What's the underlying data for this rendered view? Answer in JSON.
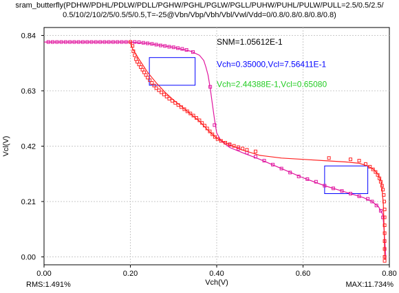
{
  "header": {
    "line1": "sram_butterfly(PDHW/PDHL/PDLW/PDLL/PGHW/PGHL/PGLW/PGLL/PUHW/PUHL/PULW/PULL=2.5/0.5/2.5/",
    "line2": "0.5/10/2/10/2/5/0.5/5/0.5,T=-25@Vbn/Vbp/Vbh/Vbl/Vwl/Vdd=0/0.8/0.8/0.8/0.8/0.8)"
  },
  "chart_data": {
    "type": "scatter",
    "xlabel": "Vch(V)",
    "ylabel": "Vcl(V)",
    "xlim": [
      0,
      0.8
    ],
    "ylim": [
      -0.03,
      0.87
    ],
    "xticks": [
      0.0,
      0.2,
      0.4,
      0.6,
      0.8
    ],
    "xtick_labels": [
      "0.00",
      "0.20",
      "0.40",
      "0.60",
      "0.80"
    ],
    "yticks": [
      0.0,
      0.21,
      0.42,
      0.63,
      0.84
    ],
    "ytick_labels": [
      "0.00",
      "0.21",
      "0.42",
      "0.63",
      "0.84"
    ],
    "grid": true,
    "colors": {
      "red": "#ff2020",
      "magenta": "#e0149e",
      "blue": "#0000ff",
      "green": "#22cc22",
      "grid": "#c8c8c8"
    },
    "annotations": [
      {
        "text": "SNM=1.05612E-1",
        "color": "#000000",
        "x": 0.4,
        "y": 0.805
      },
      {
        "text": "Vch=0.35000,Vcl=7.56411E-1",
        "color": "#0000ff",
        "x": 0.4,
        "y": 0.72
      },
      {
        "text": "Vch=2.44388E-1,Vcl=0.65080",
        "color": "#22cc22",
        "x": 0.4,
        "y": 0.645
      }
    ],
    "boxes": [
      {
        "x0": 0.244,
        "y0": 0.651,
        "x1": 0.35,
        "y1": 0.756,
        "color": "#0000ff"
      },
      {
        "x0": 0.65,
        "y0": 0.24,
        "x1": 0.75,
        "y1": 0.345,
        "color": "#0000ff"
      }
    ],
    "series": [
      {
        "color": "#e0149e",
        "curve": [
          [
            0.0,
            0.815
          ],
          [
            0.2,
            0.815
          ],
          [
            0.24,
            0.81
          ],
          [
            0.3,
            0.795
          ],
          [
            0.34,
            0.78
          ],
          [
            0.36,
            0.765
          ],
          [
            0.37,
            0.745
          ],
          [
            0.375,
            0.72
          ],
          [
            0.38,
            0.69
          ],
          [
            0.385,
            0.64
          ],
          [
            0.39,
            0.58
          ],
          [
            0.395,
            0.52
          ],
          [
            0.4,
            0.47
          ],
          [
            0.41,
            0.44
          ],
          [
            0.43,
            0.415
          ],
          [
            0.46,
            0.395
          ],
          [
            0.5,
            0.37
          ],
          [
            0.55,
            0.335
          ],
          [
            0.6,
            0.3
          ],
          [
            0.65,
            0.27
          ],
          [
            0.7,
            0.245
          ],
          [
            0.74,
            0.225
          ],
          [
            0.76,
            0.21
          ],
          [
            0.775,
            0.19
          ],
          [
            0.785,
            0.16
          ],
          [
            0.79,
            0.05
          ],
          [
            0.792,
            -0.01
          ]
        ],
        "points": [
          [
            0.01,
            0.815
          ],
          [
            0.02,
            0.815
          ],
          [
            0.03,
            0.815
          ],
          [
            0.04,
            0.815
          ],
          [
            0.05,
            0.815
          ],
          [
            0.06,
            0.815
          ],
          [
            0.07,
            0.815
          ],
          [
            0.08,
            0.815
          ],
          [
            0.09,
            0.815
          ],
          [
            0.1,
            0.815
          ],
          [
            0.11,
            0.815
          ],
          [
            0.12,
            0.815
          ],
          [
            0.13,
            0.815
          ],
          [
            0.14,
            0.815
          ],
          [
            0.15,
            0.815
          ],
          [
            0.16,
            0.815
          ],
          [
            0.17,
            0.815
          ],
          [
            0.18,
            0.815
          ],
          [
            0.19,
            0.815
          ],
          [
            0.2,
            0.815
          ],
          [
            0.21,
            0.815
          ],
          [
            0.22,
            0.814
          ],
          [
            0.23,
            0.812
          ],
          [
            0.24,
            0.81
          ],
          [
            0.25,
            0.808
          ],
          [
            0.26,
            0.805
          ],
          [
            0.27,
            0.802
          ],
          [
            0.28,
            0.8
          ],
          [
            0.29,
            0.797
          ],
          [
            0.3,
            0.795
          ],
          [
            0.31,
            0.792
          ],
          [
            0.32,
            0.789
          ],
          [
            0.33,
            0.785
          ],
          [
            0.345,
            0.777
          ],
          [
            0.385,
            0.645
          ],
          [
            0.395,
            0.5
          ],
          [
            0.43,
            0.425
          ],
          [
            0.45,
            0.41
          ],
          [
            0.47,
            0.395
          ],
          [
            0.49,
            0.38
          ],
          [
            0.51,
            0.365
          ],
          [
            0.53,
            0.35
          ],
          [
            0.55,
            0.335
          ],
          [
            0.57,
            0.32
          ],
          [
            0.59,
            0.305
          ],
          [
            0.61,
            0.295
          ],
          [
            0.63,
            0.285
          ],
          [
            0.65,
            0.27
          ],
          [
            0.67,
            0.26
          ],
          [
            0.69,
            0.25
          ],
          [
            0.71,
            0.24
          ],
          [
            0.73,
            0.23
          ],
          [
            0.75,
            0.22
          ],
          [
            0.76,
            0.21
          ],
          [
            0.77,
            0.195
          ],
          [
            0.78,
            0.175
          ],
          [
            0.785,
            0.15
          ]
        ]
      },
      {
        "color": "#ff2020",
        "curve": [
          [
            0.2,
            0.815
          ],
          [
            0.205,
            0.79
          ],
          [
            0.22,
            0.75
          ],
          [
            0.24,
            0.7
          ],
          [
            0.26,
            0.66
          ],
          [
            0.28,
            0.625
          ],
          [
            0.3,
            0.595
          ],
          [
            0.33,
            0.555
          ],
          [
            0.36,
            0.515
          ],
          [
            0.38,
            0.48
          ],
          [
            0.4,
            0.45
          ],
          [
            0.43,
            0.425
          ],
          [
            0.46,
            0.405
          ],
          [
            0.5,
            0.385
          ],
          [
            0.55,
            0.375
          ],
          [
            0.6,
            0.37
          ],
          [
            0.65,
            0.365
          ],
          [
            0.7,
            0.36
          ],
          [
            0.73,
            0.355
          ],
          [
            0.75,
            0.345
          ],
          [
            0.765,
            0.33
          ],
          [
            0.775,
            0.31
          ],
          [
            0.782,
            0.28
          ],
          [
            0.786,
            0.2
          ],
          [
            0.788,
            0.1
          ],
          [
            0.789,
            0.0
          ],
          [
            0.79,
            -0.01
          ]
        ],
        "points": [
          [
            0.2,
            0.815
          ],
          [
            0.205,
            0.8
          ],
          [
            0.207,
            0.78
          ],
          [
            0.21,
            0.765
          ],
          [
            0.213,
            0.75
          ],
          [
            0.216,
            0.74
          ],
          [
            0.22,
            0.73
          ],
          [
            0.224,
            0.72
          ],
          [
            0.228,
            0.71
          ],
          [
            0.232,
            0.7
          ],
          [
            0.236,
            0.69
          ],
          [
            0.24,
            0.68
          ],
          [
            0.245,
            0.67
          ],
          [
            0.25,
            0.66
          ],
          [
            0.255,
            0.65
          ],
          [
            0.26,
            0.64
          ],
          [
            0.266,
            0.632
          ],
          [
            0.272,
            0.624
          ],
          [
            0.278,
            0.616
          ],
          [
            0.284,
            0.608
          ],
          [
            0.29,
            0.6
          ],
          [
            0.297,
            0.592
          ],
          [
            0.304,
            0.584
          ],
          [
            0.311,
            0.576
          ],
          [
            0.318,
            0.568
          ],
          [
            0.325,
            0.56
          ],
          [
            0.332,
            0.552
          ],
          [
            0.339,
            0.544
          ],
          [
            0.346,
            0.536
          ],
          [
            0.353,
            0.527
          ],
          [
            0.36,
            0.518
          ],
          [
            0.366,
            0.508
          ],
          [
            0.372,
            0.498
          ],
          [
            0.378,
            0.487
          ],
          [
            0.384,
            0.476
          ],
          [
            0.39,
            0.465
          ],
          [
            0.396,
            0.455
          ],
          [
            0.402,
            0.447
          ],
          [
            0.41,
            0.44
          ],
          [
            0.42,
            0.433
          ],
          [
            0.43,
            0.427
          ],
          [
            0.44,
            0.421
          ],
          [
            0.45,
            0.416
          ],
          [
            0.46,
            0.411
          ],
          [
            0.47,
            0.406
          ],
          [
            0.49,
            0.4
          ],
          [
            0.66,
            0.375
          ],
          [
            0.71,
            0.37
          ],
          [
            0.73,
            0.365
          ],
          [
            0.745,
            0.352
          ],
          [
            0.755,
            0.342
          ],
          [
            0.762,
            0.332
          ],
          [
            0.768,
            0.322
          ],
          [
            0.773,
            0.311
          ],
          [
            0.777,
            0.298
          ],
          [
            0.78,
            0.285
          ],
          [
            0.783,
            0.27
          ],
          [
            0.785,
            0.255
          ],
          [
            0.787,
            0.235
          ],
          [
            0.788,
            0.21
          ],
          [
            0.789,
            0.18
          ],
          [
            0.789,
            0.15
          ],
          [
            0.789,
            0.12
          ],
          [
            0.789,
            0.09
          ],
          [
            0.789,
            0.06
          ],
          [
            0.789,
            0.03
          ],
          [
            0.789,
            0.0
          ],
          [
            0.789,
            -0.015
          ]
        ]
      }
    ]
  },
  "footer": {
    "rms": "RMS:1.491%",
    "max": "MAX:11.734%"
  }
}
